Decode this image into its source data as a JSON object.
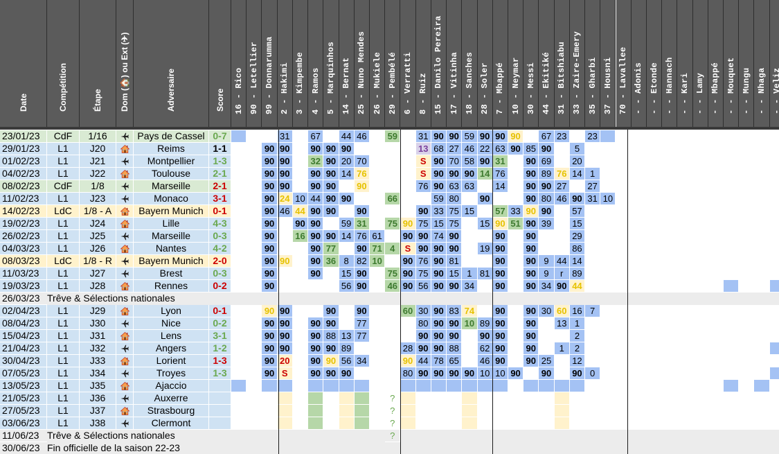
{
  "columns": {
    "date": "Date",
    "competition": "Compétition",
    "stage": "Étape",
    "venue": "Dom (🏠) ou Ext (✈)",
    "opponent": "Adversaire",
    "score": "Score"
  },
  "players": [
    {
      "num": "16",
      "name": "Rico"
    },
    {
      "num": "90",
      "name": "Letellier"
    },
    {
      "num": "99",
      "name": "Donnarumma"
    },
    {
      "num": "2",
      "name": "Hakimi"
    },
    {
      "num": "3",
      "name": "Kimpembe"
    },
    {
      "num": "4",
      "name": "Ramos"
    },
    {
      "num": "5",
      "name": "Marquinhos"
    },
    {
      "num": "14",
      "name": "Bernat"
    },
    {
      "num": "25",
      "name": "Nuno Mendes"
    },
    {
      "num": "26",
      "name": "Mukiele"
    },
    {
      "num": "29",
      "name": "Pembélé"
    },
    {
      "num": "6",
      "name": "Verratti"
    },
    {
      "num": "8",
      "name": "Ruiz"
    },
    {
      "num": "15",
      "name": "Danilo Pereira"
    },
    {
      "num": "17",
      "name": "Vitinha"
    },
    {
      "num": "18",
      "name": "Sanches"
    },
    {
      "num": "28",
      "name": "Soler"
    },
    {
      "num": "7",
      "name": "Mbappé"
    },
    {
      "num": "10",
      "name": "Neymar"
    },
    {
      "num": "30",
      "name": "Messi"
    },
    {
      "num": "44",
      "name": "Ekitiké"
    },
    {
      "num": "31",
      "name": "Bitshiabu"
    },
    {
      "num": "33",
      "name": "Zaire-Emery"
    },
    {
      "num": "35",
      "name": "Gharbi"
    },
    {
      "num": "37",
      "name": "Housni"
    },
    {
      "num": "70",
      "name": "Lavallee"
    },
    {
      "num": "-",
      "name": "Adonis"
    },
    {
      "num": "-",
      "name": "Etonde"
    },
    {
      "num": "-",
      "name": "Hannach"
    },
    {
      "num": "-",
      "name": "Kari"
    },
    {
      "num": "-",
      "name": "Lamy"
    },
    {
      "num": "-",
      "name": "Mbappé"
    },
    {
      "num": "-",
      "name": "Mouquet"
    },
    {
      "num": "-",
      "name": "Mungu"
    },
    {
      "num": "-",
      "name": "Nhaga"
    },
    {
      "num": "-",
      "name": "Veliz"
    }
  ],
  "matches": [
    {
      "date": "23/01/23",
      "comp": "CdF",
      "stage": "1/16",
      "venue": "away",
      "opponent": "Pays de Cassel",
      "score": "0-7",
      "result": "W",
      "cells": [
        "b",
        "w",
        "",
        "b31",
        "",
        "b67",
        "",
        "b44",
        "b46",
        "",
        "g59",
        "",
        "b31",
        "b90",
        "b90",
        "b59",
        "b90",
        "b90",
        "y90",
        "",
        "b67",
        "b23",
        "",
        "b23",
        "b",
        "",
        "",
        "",
        "",
        "",
        "",
        "",
        "",
        "",
        "",
        ""
      ]
    },
    {
      "date": "29/01/23",
      "comp": "L1",
      "stage": "J20",
      "venue": "home",
      "opponent": "Reims",
      "score": "1-1",
      "result": "D",
      "cells": [
        "w",
        "w",
        "b90",
        "b90",
        "",
        "b90",
        "b90",
        "b90",
        "",
        "",
        "",
        "",
        "p13",
        "b68",
        "b27",
        "b46",
        "b22",
        "b63",
        "b90",
        "b85",
        "b90",
        "",
        "b5",
        "",
        "",
        "",
        "",
        "",
        "",
        "",
        "",
        "",
        "",
        "",
        "",
        ""
      ]
    },
    {
      "date": "01/02/23",
      "comp": "L1",
      "stage": "J21",
      "venue": "away",
      "opponent": "Montpellier",
      "score": "1-3",
      "result": "W",
      "cells": [
        "w",
        "",
        "b90",
        "b90",
        "",
        "g32",
        "b90",
        "b20",
        "b70",
        "",
        "",
        "",
        "rS",
        "b90",
        "b70",
        "b58",
        "b90",
        "g31",
        "",
        "b90",
        "b69",
        "",
        "b20",
        "",
        "",
        "",
        "",
        "",
        "",
        "",
        "",
        "",
        "",
        "",
        "",
        ""
      ]
    },
    {
      "date": "04/02/23",
      "comp": "L1",
      "stage": "J22",
      "venue": "home",
      "opponent": "Toulouse",
      "score": "2-1",
      "result": "W",
      "cells": [
        "w",
        "",
        "b90",
        "b90",
        "",
        "b90",
        "b90",
        "b14",
        "y76",
        "",
        "",
        "",
        "rS",
        "b90",
        "b90",
        "b90",
        "g14",
        "b76",
        "",
        "b90",
        "b89",
        "y76",
        "b14",
        "b1",
        "",
        "",
        "",
        "",
        "",
        "",
        "",
        "",
        "",
        "",
        "",
        ""
      ]
    },
    {
      "date": "08/02/23",
      "comp": "CdF",
      "stage": "1/8",
      "venue": "away",
      "opponent": "Marseille",
      "score": "2-1",
      "result": "L",
      "cells": [
        "w",
        "",
        "b90",
        "b90",
        "",
        "b90",
        "b90",
        "",
        "y90",
        "",
        "",
        "",
        "b76",
        "b90",
        "b63",
        "b63",
        "",
        "b14",
        "",
        "b90",
        "b90",
        "b27",
        "",
        "b27",
        "",
        "",
        "",
        "",
        "",
        "",
        "",
        "",
        "",
        "",
        "",
        ""
      ]
    },
    {
      "date": "11/02/23",
      "comp": "L1",
      "stage": "J23",
      "venue": "away",
      "opponent": "Monaco",
      "score": "3-1",
      "result": "L",
      "cells": [
        "w",
        "",
        "b90",
        "y24",
        "b10",
        "b44",
        "b90",
        "b90",
        "",
        "",
        "g66",
        "",
        "",
        "b59",
        "b80",
        "",
        "b90",
        "",
        "",
        "b90",
        "b80",
        "b46",
        "b90",
        "b31",
        "b10",
        "",
        "",
        "",
        "",
        "",
        "",
        "",
        "",
        "",
        "",
        ""
      ]
    },
    {
      "date": "14/02/23",
      "comp": "LdC",
      "stage": "1/8 - A",
      "venue": "home",
      "opponent": "Bayern Munich",
      "score": "0-1",
      "result": "L",
      "cells": [
        "w",
        "",
        "b90",
        "b46",
        "y44",
        "b90",
        "b90",
        "",
        "b90",
        "",
        "",
        "",
        "b90",
        "b33",
        "b75",
        "b15",
        "",
        "g57",
        "b33",
        "y90",
        "b90",
        "",
        "b57",
        "",
        "",
        "",
        "",
        "",
        "",
        "",
        "",
        "",
        "",
        "",
        "",
        ""
      ]
    },
    {
      "date": "19/02/23",
      "comp": "L1",
      "stage": "J24",
      "venue": "home",
      "opponent": "Lille",
      "score": "4-3",
      "result": "W",
      "cells": [
        "w",
        "",
        "b90",
        "",
        "b90",
        "b90",
        "",
        "b59",
        "g31",
        "",
        "g75",
        "y90",
        "b75",
        "b15",
        "b75",
        "",
        "b15",
        "y90",
        "g51",
        "b90",
        "b39",
        "",
        "b15",
        "",
        "",
        "",
        "",
        "",
        "",
        "",
        "",
        "",
        "",
        "",
        "",
        ""
      ]
    },
    {
      "date": "26/02/23",
      "comp": "L1",
      "stage": "J25",
      "venue": "away",
      "opponent": "Marseille",
      "score": "0-3",
      "result": "W",
      "cells": [
        "w",
        "",
        "b90",
        "",
        "g16",
        "b90",
        "b90",
        "b14",
        "b76",
        "b61",
        "",
        "b90",
        "b90",
        "b74",
        "b90",
        "",
        "",
        "b90",
        "",
        "b90",
        "",
        "",
        "b29",
        "",
        "",
        "",
        "",
        "",
        "",
        "",
        "",
        "",
        "",
        "",
        "",
        ""
      ]
    },
    {
      "date": "04/03/23",
      "comp": "L1",
      "stage": "J26",
      "venue": "home",
      "opponent": "Nantes",
      "score": "4-2",
      "result": "W",
      "cells": [
        "w",
        "",
        "b90",
        "",
        "",
        "b90",
        "g77",
        "",
        "b90",
        "g71",
        "g4",
        "rS",
        "b90",
        "b90",
        "b90",
        "",
        "b19",
        "b90",
        "",
        "b90",
        "",
        "",
        "b86",
        "",
        "",
        "",
        "",
        "",
        "",
        "",
        "",
        "",
        "",
        "",
        "",
        ""
      ]
    },
    {
      "date": "08/03/23",
      "comp": "LdC",
      "stage": "1/8 - R",
      "venue": "away",
      "opponent": "Bayern Munich",
      "score": "2-0",
      "result": "L",
      "cells": [
        "w",
        "",
        "b90",
        "y90",
        "",
        "b90",
        "g36",
        "b8",
        "b82",
        "g10",
        "",
        "b90",
        "b76",
        "b90",
        "b81",
        "",
        "",
        "b90",
        "",
        "b90",
        "b9",
        "b44",
        "b14",
        "",
        "",
        "",
        "",
        "",
        "",
        "",
        "",
        "",
        "",
        "",
        "",
        ""
      ]
    },
    {
      "date": "11/03/23",
      "comp": "L1",
      "stage": "J27",
      "venue": "away",
      "opponent": "Brest",
      "score": "0-3",
      "result": "W",
      "cells": [
        "w",
        "",
        "b90",
        "",
        "",
        "b90",
        "",
        "b15",
        "b90",
        "",
        "g75",
        "b90",
        "b75",
        "b90",
        "b15",
        "b1",
        "b81",
        "b90",
        "",
        "b90",
        "b9",
        "br",
        "b89",
        "",
        "",
        "",
        "",
        "",
        "",
        "",
        "",
        "",
        "",
        "",
        "",
        ""
      ]
    },
    {
      "date": "19/03/23",
      "comp": "L1",
      "stage": "J28",
      "venue": "home",
      "opponent": "Rennes",
      "score": "0-2",
      "result": "L",
      "cells": [
        "w",
        "",
        "b90",
        "",
        "",
        "",
        "",
        "b56",
        "b90",
        "",
        "g46",
        "b90",
        "b56",
        "b90",
        "b90",
        "b34",
        "",
        "b90",
        "",
        "b90",
        "b34",
        "b90",
        "y44",
        "",
        "",
        "",
        "",
        "",
        "",
        "",
        "",
        "",
        "b",
        "",
        "",
        "b"
      ]
    },
    {
      "type": "break",
      "date": "26/03/23",
      "text": "Trêve & Sélections nationales"
    },
    {
      "date": "02/04/23",
      "comp": "L1",
      "stage": "J29",
      "venue": "home",
      "opponent": "Lyon",
      "score": "0-1",
      "result": "L",
      "cells": [
        "w",
        "",
        "y90",
        "b90",
        "",
        "",
        "b90",
        "",
        "b90",
        "",
        "",
        "g60",
        "b30",
        "b90",
        "b83",
        "y74",
        "",
        "b90",
        "",
        "b90",
        "b30",
        "y60",
        "b16",
        "b7",
        "",
        "",
        "",
        "",
        "",
        "",
        "",
        "",
        "",
        "",
        "",
        ""
      ]
    },
    {
      "date": "08/04/23",
      "comp": "L1",
      "stage": "J30",
      "venue": "away",
      "opponent": "Nice",
      "score": "0-2",
      "result": "W",
      "cells": [
        "w",
        "",
        "b90",
        "b90",
        "",
        "b90",
        "b90",
        "",
        "b77",
        "",
        "",
        "",
        "b80",
        "b90",
        "b90",
        "g10",
        "b89",
        "b90",
        "",
        "b90",
        "",
        "b13",
        "b1",
        "",
        "",
        "",
        "",
        "",
        "",
        "",
        "",
        "",
        "",
        "",
        "",
        ""
      ]
    },
    {
      "date": "15/04/23",
      "comp": "L1",
      "stage": "J31",
      "venue": "home",
      "opponent": "Lens",
      "score": "3-1",
      "result": "W",
      "cells": [
        "w",
        "",
        "b90",
        "b90",
        "",
        "b90",
        "b88",
        "b13",
        "b77",
        "",
        "",
        "",
        "b90",
        "b90",
        "b90",
        "",
        "b90",
        "b90",
        "",
        "b90",
        "",
        "",
        "b2",
        "",
        "",
        "",
        "",
        "",
        "",
        "",
        "",
        "",
        "",
        "",
        "",
        ""
      ]
    },
    {
      "date": "21/04/23",
      "comp": "L1",
      "stage": "J32",
      "venue": "away",
      "opponent": "Angers",
      "score": "1-2",
      "result": "W",
      "cells": [
        "w",
        "",
        "b90",
        "b90",
        "",
        "b90",
        "b90",
        "b89",
        "",
        "",
        "",
        "b28",
        "b90",
        "b90",
        "b88",
        "",
        "b62",
        "b90",
        "",
        "b90",
        "",
        "b1",
        "b2",
        "",
        "",
        "",
        "",
        "",
        "",
        "",
        "",
        "",
        "",
        "",
        "",
        "b"
      ]
    },
    {
      "date": "30/04/23",
      "comp": "L1",
      "stage": "J33",
      "venue": "home",
      "opponent": "Lorient",
      "score": "1-3",
      "result": "L",
      "cells": [
        "w",
        "",
        "b90",
        "r20",
        "",
        "b90",
        "y90",
        "b56",
        "b34",
        "",
        "",
        "y90",
        "b44",
        "b78",
        "b65",
        "",
        "b46",
        "b90",
        "",
        "b90",
        "b25",
        "",
        "b12",
        "",
        "",
        "",
        "",
        "",
        "",
        "",
        "",
        "",
        "",
        "",
        "",
        ""
      ]
    },
    {
      "date": "07/05/23",
      "comp": "L1",
      "stage": "J34",
      "venue": "away",
      "opponent": "Troyes",
      "score": "1-3",
      "result": "W",
      "cells": [
        "w",
        "",
        "b90",
        "rS",
        "",
        "b90",
        "b90",
        "b90",
        "",
        "",
        "",
        "b80",
        "b90",
        "b90",
        "b90",
        "b90",
        "b10",
        "b10",
        "b90",
        "",
        "b90",
        "",
        "b90",
        "b0",
        "",
        "",
        "",
        "",
        "",
        "",
        "",
        "",
        "",
        "",
        "",
        "b"
      ]
    },
    {
      "date": "13/05/23",
      "comp": "L1",
      "stage": "J35",
      "venue": "home",
      "opponent": "Ajaccio",
      "score": "",
      "result": "",
      "cells": [
        "b",
        "",
        "b",
        "b",
        "",
        "b",
        "b",
        "b",
        "b",
        "",
        "",
        "b",
        "b",
        "b",
        "b",
        "b",
        "b",
        "b",
        "",
        "b",
        "b",
        "b",
        "b",
        "",
        "",
        "",
        "",
        "",
        "",
        "",
        "",
        "",
        "b",
        "",
        "b",
        ""
      ]
    },
    {
      "date": "21/05/23",
      "comp": "L1",
      "stage": "J36",
      "venue": "away",
      "opponent": "Auxerre",
      "score": "",
      "result": "",
      "cells": [
        "",
        "",
        "",
        "y",
        "",
        "g",
        "",
        "y",
        "g",
        "",
        "?",
        "y",
        "",
        "",
        "",
        "y",
        "",
        "",
        "",
        "",
        "",
        "y",
        "",
        "",
        "",
        "",
        "",
        "",
        "",
        "",
        "",
        "",
        "",
        "",
        "",
        ""
      ]
    },
    {
      "date": "27/05/23",
      "comp": "L1",
      "stage": "J37",
      "venue": "home",
      "opponent": "Strasbourg",
      "score": "",
      "result": "",
      "cells": [
        "",
        "",
        "",
        "y",
        "",
        "g",
        "",
        "y",
        "g",
        "",
        "?",
        "y",
        "",
        "",
        "",
        "y",
        "",
        "",
        "",
        "",
        "",
        "y",
        "",
        "",
        "",
        "",
        "",
        "",
        "",
        "",
        "",
        "",
        "",
        "",
        "",
        ""
      ]
    },
    {
      "date": "03/06/23",
      "comp": "L1",
      "stage": "J38",
      "venue": "away",
      "opponent": "Clermont",
      "score": "",
      "result": "",
      "cells": [
        "",
        "",
        "",
        "y",
        "",
        "g",
        "",
        "y",
        "g",
        "",
        "?",
        "y",
        "",
        "",
        "",
        "y",
        "",
        "",
        "",
        "",
        "",
        "y",
        "",
        "",
        "",
        "",
        "",
        "",
        "",
        "",
        "",
        "",
        "",
        "",
        "",
        ""
      ]
    },
    {
      "type": "break",
      "date": "11/06/23",
      "text": "Trêve & Sélections nationales",
      "mark": "?"
    },
    {
      "type": "break",
      "date": "30/06/23",
      "text": "Fin officielle de la saison 22-23"
    }
  ],
  "colors": {
    "header": "#5b5b5b",
    "played": "#a4c2f4",
    "sub": "#b6d7a8",
    "highlight": "#fff2cc",
    "win": "#6aa84f",
    "loss": "#cc0000",
    "break_row": "#ececec"
  }
}
